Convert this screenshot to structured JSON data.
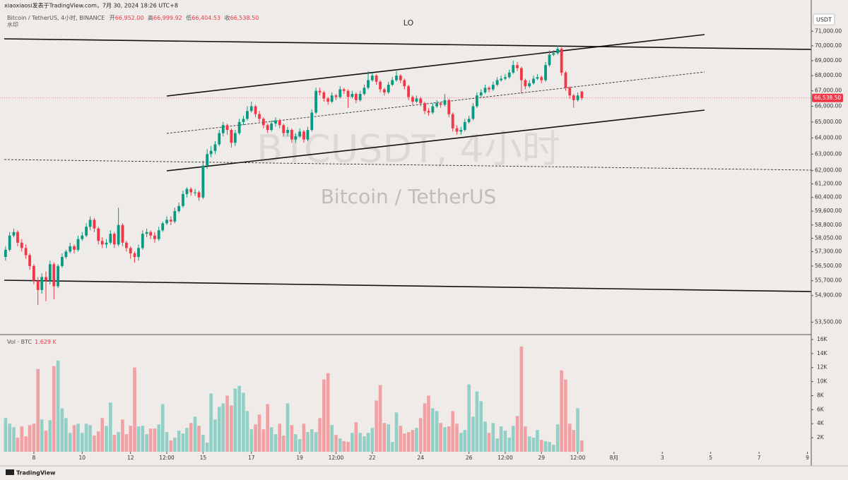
{
  "chart_data": {
    "type": "candlestick",
    "header": "xiaoxiaosi发表于TradingView.com，7月 30, 2024 18:26 UTC+8",
    "title": "Bitcoin / TetherUS, 4小时, BINANCE",
    "ohlc_legend": [
      {
        "key": "开",
        "text": "66,952.00"
      },
      {
        "key": "高",
        "text": "66,999.92"
      },
      {
        "key": "低",
        "text": "66,404.53"
      },
      {
        "key": "收",
        "text": "66,538.50"
      }
    ],
    "subtitle": "水印",
    "annotation": "LO",
    "watermark": "BTCUSDT, 4小时",
    "watermark_subtitle": "Bitcoin / TetherUS",
    "currency": "USDT",
    "last_price_label": "66,538.50",
    "footer": "TradingView",
    "log_scale": true,
    "grid": false,
    "up_color": "#089981",
    "down_color": "#f23645",
    "volume_up_color": "#92cfc6",
    "volume_down_color": "#f1a0a4",
    "xlim": [
      6.6,
      40.16
    ],
    "xticks": [
      8,
      10,
      12,
      {
        "value": 13.5,
        "label": "12:00"
      },
      15,
      17,
      19,
      {
        "value": 20.5,
        "label": "12:00"
      },
      22,
      24,
      26,
      {
        "value": 27.5,
        "label": "12:00"
      },
      29,
      {
        "value": 30.5,
        "label": "12:00"
      },
      {
        "value": 32,
        "label": "8月"
      },
      {
        "value": 34,
        "label": "3"
      },
      {
        "value": 36,
        "label": "5"
      },
      {
        "value": 38,
        "label": "7"
      },
      {
        "value": 40,
        "label": "9"
      }
    ],
    "ylim": [
      53000,
      71700
    ],
    "yticks": [
      {
        "value": 71000,
        "label": "71,000.00"
      },
      {
        "value": 70000,
        "label": "70,000.00"
      },
      {
        "value": 69000,
        "label": "69,000.00"
      },
      {
        "value": 68000,
        "label": "68,000.00"
      },
      {
        "value": 67000,
        "label": "67,000.00"
      },
      {
        "value": 66000,
        "label": "66,000.00"
      },
      {
        "value": 65000,
        "label": "65,000.00"
      },
      {
        "value": 64000,
        "label": "64,000.00"
      },
      {
        "value": 63000,
        "label": "63,000.00"
      },
      {
        "value": 62000,
        "label": "62,000.00"
      },
      {
        "value": 61200,
        "label": "61,200.00"
      },
      {
        "value": 60400,
        "label": "60,400.00"
      },
      {
        "value": 59600,
        "label": "59,600.00"
      },
      {
        "value": 58800,
        "label": "58,800.00"
      },
      {
        "value": 58050,
        "label": "58,050.00"
      },
      {
        "value": 57300,
        "label": "57,300.00"
      },
      {
        "value": 56500,
        "label": "56,500.00"
      },
      {
        "value": 55700,
        "label": "55,700.00"
      },
      {
        "value": 54900,
        "label": "54,900.00"
      },
      {
        "value": 53500,
        "label": "53,500.00"
      }
    ],
    "x": [
      6.83,
      7,
      7.17,
      7.33,
      7.5,
      7.67,
      7.83,
      8,
      8.17,
      8.33,
      8.5,
      8.67,
      8.83,
      9,
      9.17,
      9.33,
      9.5,
      9.67,
      9.83,
      10,
      10.17,
      10.33,
      10.5,
      10.67,
      10.83,
      11,
      11.17,
      11.33,
      11.5,
      11.67,
      11.83,
      12,
      12.17,
      12.33,
      12.5,
      12.67,
      12.83,
      13,
      13.17,
      13.33,
      13.5,
      13.67,
      13.83,
      14,
      14.17,
      14.33,
      14.5,
      14.67,
      14.83,
      15,
      15.17,
      15.33,
      15.5,
      15.67,
      15.83,
      16,
      16.17,
      16.33,
      16.5,
      16.67,
      16.83,
      17,
      17.17,
      17.33,
      17.5,
      17.67,
      17.83,
      18,
      18.17,
      18.33,
      18.5,
      18.67,
      18.83,
      19,
      19.17,
      19.33,
      19.5,
      19.67,
      19.83,
      20,
      20.17,
      20.33,
      20.5,
      20.67,
      20.83,
      21,
      21.17,
      21.33,
      21.5,
      21.67,
      21.83,
      22,
      22.17,
      22.33,
      22.5,
      22.67,
      22.83,
      23,
      23.17,
      23.33,
      23.5,
      23.67,
      23.83,
      24,
      24.17,
      24.33,
      24.5,
      24.67,
      24.83,
      25,
      25.17,
      25.33,
      25.5,
      25.67,
      25.83,
      26,
      26.17,
      26.33,
      26.5,
      26.67,
      26.83,
      27,
      27.17,
      27.33,
      27.5,
      27.67,
      27.83,
      28,
      28.17,
      28.33,
      28.5,
      28.67,
      28.83,
      29,
      29.17,
      29.33,
      29.5,
      29.67,
      29.83,
      30,
      30.17,
      30.33,
      30.5,
      30.67
    ],
    "open": [
      57000,
      57400,
      58200,
      58400,
      57800,
      57500,
      57100,
      56500,
      55700,
      55200,
      55900,
      55700,
      56600,
      55400,
      56500,
      57000,
      57300,
      57600,
      57400,
      58000,
      58200,
      58700,
      59100,
      58600,
      57900,
      57700,
      57800,
      58300,
      57700,
      58800,
      57800,
      57500,
      57200,
      57000,
      57500,
      58300,
      58400,
      58200,
      58000,
      58500,
      58900,
      59100,
      59000,
      59600,
      59900,
      60600,
      60900,
      60700,
      60700,
      60400,
      62300,
      63000,
      63200,
      63600,
      64300,
      64800,
      64500,
      63700,
      64300,
      65000,
      65200,
      65700,
      66000,
      65500,
      65200,
      64800,
      64500,
      64900,
      65100,
      64800,
      64300,
      64500,
      63900,
      64100,
      64400,
      63900,
      64500,
      65600,
      67000,
      66900,
      66500,
      66300,
      66700,
      66600,
      67100,
      67000,
      66600,
      66800,
      66400,
      66800,
      67200,
      67700,
      68000,
      67600,
      67100,
      66900,
      67400,
      67700,
      68000,
      67700,
      67300,
      66600,
      66300,
      66500,
      66200,
      65700,
      65600,
      66000,
      66200,
      66100,
      66400,
      65500,
      64600,
      64400,
      64500,
      65000,
      65200,
      66000,
      66700,
      66900,
      67200,
      67100,
      67400,
      67700,
      67800,
      67900,
      68200,
      68700,
      68500,
      67700,
      67300,
      67500,
      67800,
      67900,
      67700,
      68700,
      69400,
      69500,
      69800,
      68200,
      67200,
      66700,
      66400,
      66952
    ],
    "high": [
      57600,
      58400,
      58600,
      58500,
      58000,
      57700,
      57200,
      56600,
      55900,
      56100,
      56200,
      56800,
      56700,
      56600,
      57200,
      57400,
      57800,
      57700,
      58200,
      58400,
      58900,
      59300,
      59200,
      58700,
      58100,
      58000,
      58500,
      58400,
      59800,
      58900,
      57900,
      57600,
      57300,
      57700,
      58500,
      58600,
      58500,
      58400,
      58700,
      59000,
      59300,
      59300,
      59800,
      60100,
      60800,
      61000,
      61000,
      60900,
      60800,
      62600,
      63300,
      63500,
      63800,
      64500,
      65000,
      64900,
      64600,
      64500,
      65200,
      65400,
      66000,
      66300,
      66100,
      65700,
      65300,
      64900,
      65100,
      65300,
      65200,
      64900,
      64700,
      64600,
      64300,
      64600,
      64500,
      64700,
      65800,
      67200,
      67200,
      67000,
      66600,
      66900,
      66800,
      67300,
      67200,
      67100,
      67000,
      66900,
      67000,
      67400,
      68300,
      68200,
      68100,
      67700,
      67200,
      67600,
      67900,
      68300,
      68100,
      67800,
      67400,
      66700,
      66700,
      66600,
      66300,
      65900,
      66200,
      66400,
      66300,
      66800,
      66500,
      65600,
      64800,
      64700,
      65200,
      65400,
      66200,
      66900,
      67100,
      67400,
      67300,
      67600,
      67900,
      68000,
      68100,
      68400,
      69000,
      68900,
      68600,
      67800,
      67700,
      68000,
      68100,
      68000,
      68900,
      69700,
      69700,
      70000,
      69900,
      68300,
      67300,
      66800,
      66900,
      66999.92
    ],
    "low": [
      56800,
      57300,
      58100,
      57600,
      57300,
      56900,
      56300,
      55500,
      54400,
      55000,
      54600,
      55500,
      54700,
      55300,
      56400,
      56900,
      57200,
      57200,
      57300,
      57900,
      58100,
      58500,
      58400,
      57700,
      57500,
      57500,
      57700,
      57500,
      57600,
      57600,
      57300,
      56900,
      56700,
      56800,
      57400,
      58100,
      58000,
      57800,
      57900,
      58400,
      58800,
      58800,
      58900,
      59500,
      59800,
      60400,
      60500,
      60500,
      60200,
      60300,
      62100,
      62800,
      63000,
      63500,
      64100,
      64200,
      63400,
      63500,
      64200,
      64800,
      65100,
      65600,
      65300,
      65000,
      64600,
      64300,
      64400,
      64700,
      64600,
      64100,
      64100,
      63700,
      63700,
      64000,
      63700,
      63800,
      64400,
      65500,
      66700,
      66300,
      66100,
      66200,
      66400,
      66500,
      66800,
      65900,
      66500,
      66200,
      66300,
      66700,
      67100,
      67600,
      67400,
      66900,
      66700,
      66800,
      67300,
      67600,
      67500,
      67100,
      66400,
      66100,
      66200,
      66000,
      65500,
      65400,
      65500,
      65900,
      65900,
      66000,
      65300,
      64400,
      64200,
      64200,
      64400,
      64900,
      65100,
      65900,
      66600,
      66800,
      66900,
      67000,
      67300,
      67600,
      67700,
      67800,
      68100,
      68300,
      66800,
      67100,
      67200,
      67400,
      67700,
      67500,
      67600,
      68600,
      69300,
      69400,
      68000,
      67000,
      66500,
      65900,
      66300,
      66404.53
    ],
    "close": [
      57400,
      58200,
      58400,
      57800,
      57500,
      57100,
      56500,
      55700,
      55200,
      55900,
      55700,
      56600,
      55400,
      56500,
      57000,
      57300,
      57600,
      57400,
      58000,
      58200,
      58700,
      59100,
      58600,
      57900,
      57700,
      57800,
      58300,
      57700,
      58800,
      57800,
      57500,
      57200,
      57000,
      57500,
      58300,
      58400,
      58200,
      58000,
      58500,
      58900,
      59100,
      59000,
      59600,
      59900,
      60600,
      60900,
      60700,
      60700,
      60400,
      62300,
      63000,
      63200,
      63600,
      64300,
      64800,
      64500,
      63700,
      64300,
      65000,
      65200,
      65700,
      66000,
      65500,
      65200,
      64800,
      64500,
      64900,
      65100,
      64800,
      64300,
      64500,
      63900,
      64100,
      64400,
      63900,
      64500,
      65600,
      67000,
      66900,
      66500,
      66300,
      66700,
      66600,
      67100,
      67000,
      66600,
      66800,
      66400,
      66800,
      67200,
      67700,
      68000,
      67600,
      67100,
      66900,
      67400,
      67700,
      68000,
      67700,
      67300,
      66600,
      66300,
      66500,
      66200,
      65700,
      65600,
      66000,
      66200,
      66100,
      66400,
      65500,
      64600,
      64400,
      64500,
      65000,
      65200,
      66000,
      66700,
      66900,
      67200,
      67100,
      67400,
      67700,
      67800,
      67900,
      68200,
      68700,
      68500,
      67700,
      67300,
      67500,
      67800,
      67900,
      67700,
      68700,
      69400,
      69500,
      69800,
      68200,
      67200,
      66700,
      66400,
      66700,
      66538.5
    ],
    "volume_name": "Vol · BTC",
    "volume_label": "1.629 K",
    "volume_ylim": [
      0,
      16500
    ],
    "volume_yticks": [
      {
        "value": 16000,
        "label": "16K"
      },
      {
        "value": 14000,
        "label": "14K"
      },
      {
        "value": 12000,
        "label": "12K"
      },
      {
        "value": 10000,
        "label": "10K"
      },
      {
        "value": 8000,
        "label": "8K"
      },
      {
        "value": 6000,
        "label": "6K"
      },
      {
        "value": 4000,
        "label": "4K"
      },
      {
        "value": 2000,
        "label": "2K"
      }
    ],
    "volume": [
      4800,
      4000,
      3500,
      2000,
      3600,
      2200,
      3800,
      4000,
      11800,
      4600,
      3000,
      4500,
      12200,
      13000,
      6200,
      4800,
      2700,
      3800,
      4000,
      2700,
      4000,
      3800,
      2300,
      2900,
      4800,
      3700,
      7000,
      2400,
      2800,
      4600,
      2500,
      3700,
      12000,
      3600,
      3700,
      2500,
      3300,
      3300,
      3900,
      6800,
      2800,
      1600,
      2000,
      3000,
      2600,
      3400,
      4100,
      5000,
      3700,
      2400,
      1300,
      8300,
      4600,
      6400,
      6900,
      8000,
      6600,
      9000,
      9400,
      8400,
      5800,
      3200,
      3900,
      5300,
      3200,
      6800,
      3500,
      2500,
      4000,
      2300,
      6900,
      3800,
      2500,
      1800,
      4000,
      2800,
      3200,
      2800,
      4800,
      10300,
      11200,
      3800,
      2400,
      1900,
      1500,
      1400,
      2700,
      4200,
      2700,
      2200,
      2700,
      3400,
      7300,
      9500,
      4100,
      3900,
      1400,
      5600,
      3700,
      2600,
      2800,
      3100,
      3400,
      4800,
      6900,
      8000,
      6200,
      5800,
      4100,
      3500,
      3600,
      5800,
      4000,
      2700,
      3100,
      9600,
      5000,
      8600,
      7200,
      4300,
      2700,
      4100,
      1900,
      3600,
      3000,
      2000,
      3700,
      5100,
      15000,
      3600,
      2200,
      2000,
      3100,
      1700,
      1500,
      1400,
      1000,
      3900,
      11600,
      10300,
      4000,
      3100,
      6200,
      1629
    ]
  }
}
